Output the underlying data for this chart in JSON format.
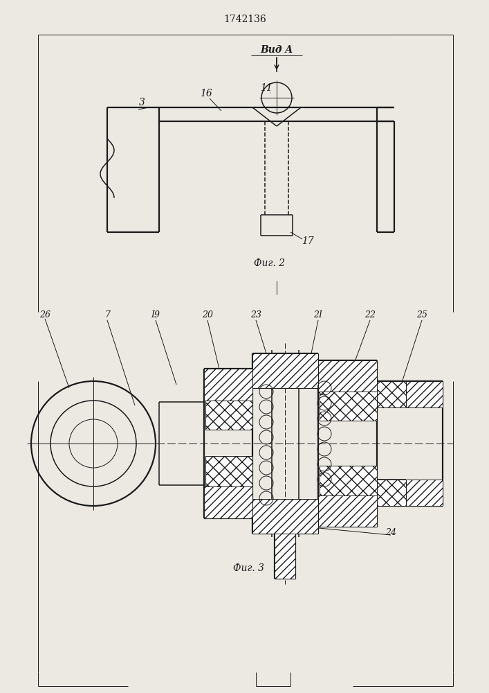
{
  "title": "1742136",
  "fig2_label": "Фиг. 2",
  "fig3_label": "Фиг. 3",
  "vid_a_label": "Вид A",
  "bg_color": "#ece9e3",
  "line_color": "#1a1a1a",
  "lw_thin": 0.7,
  "lw_med": 1.1,
  "lw_thick": 1.6
}
